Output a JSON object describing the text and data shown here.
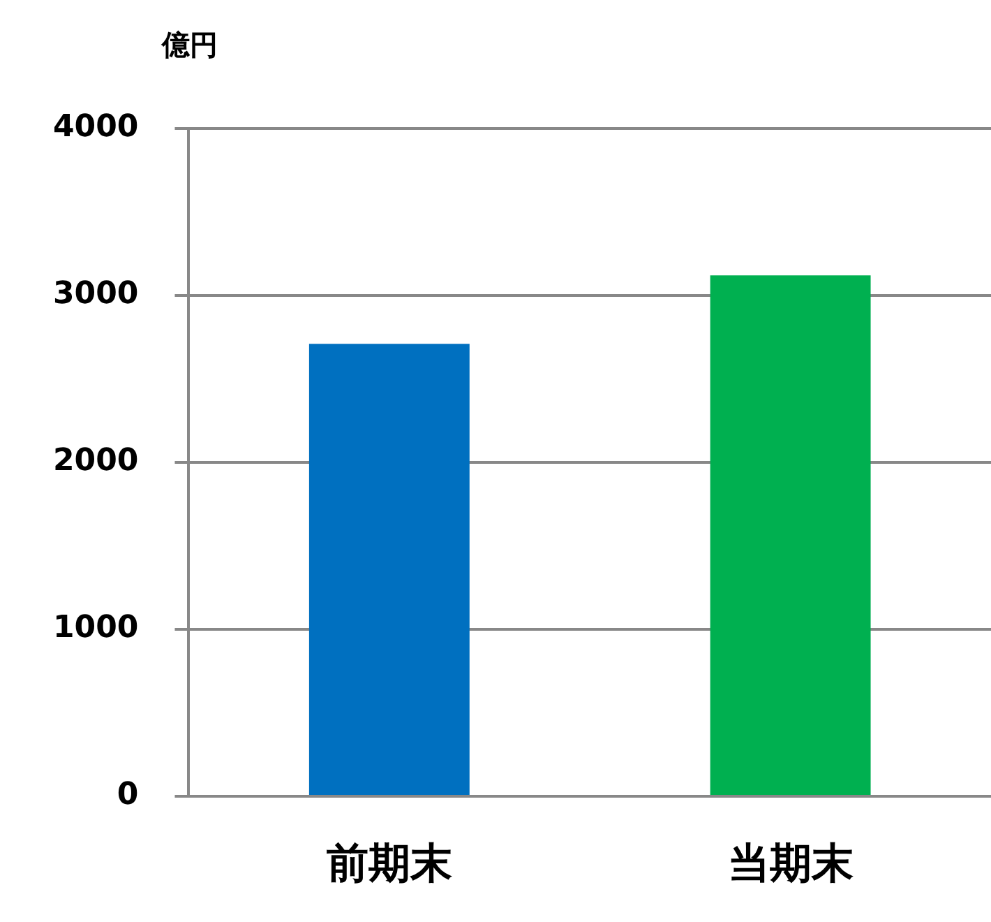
{
  "chart_data": {
    "type": "bar",
    "ylabel": "億円",
    "categories": [
      "前期末",
      "当期末"
    ],
    "values": [
      2710,
      3120
    ],
    "colors": [
      "#0070c0",
      "#00b050"
    ],
    "ylim": [
      0,
      4000
    ],
    "yticks": [
      0,
      1000,
      2000,
      3000,
      4000
    ],
    "grid": "y",
    "legend": false
  }
}
